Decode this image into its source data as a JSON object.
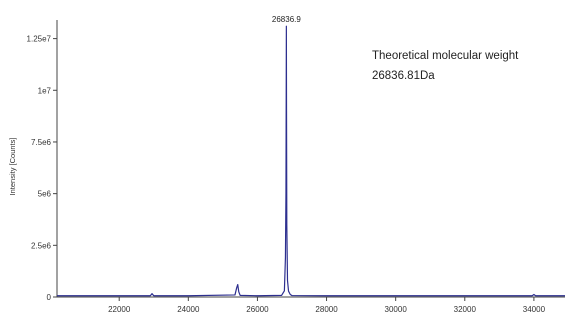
{
  "chart_data": {
    "type": "line",
    "title": "",
    "xlabel": "",
    "ylabel": "Intensity [Counts]",
    "xlim": [
      20200,
      34900
    ],
    "ylim": [
      0,
      13400000
    ],
    "x_ticks": [
      22000,
      24000,
      26000,
      28000,
      30000,
      32000,
      34000
    ],
    "y_ticks": [
      0,
      2500000,
      5000000,
      7500000,
      10000000,
      12500000
    ],
    "x_tick_labels": [
      "22000",
      "24000",
      "26000",
      "28000",
      "30000",
      "32000",
      "34000"
    ],
    "y_tick_labels": [
      "0",
      "2.5e6",
      "5e6",
      "7.5e6",
      "1e7",
      "1.25e7"
    ],
    "grid": false,
    "line_color": "#2d2f8f",
    "series": [
      {
        "x": [
          20200,
          22000,
          22900,
          22950,
          23000,
          24000,
          25350,
          25400,
          25430,
          25460,
          25500,
          26000,
          26700,
          26780,
          26810,
          26825,
          26832,
          26836.9,
          26842,
          26850,
          26870,
          26900,
          26950,
          27000,
          28000,
          30000,
          32000,
          33950,
          34000,
          34050,
          34900
        ],
        "y": [
          60000,
          60000,
          60000,
          160000,
          60000,
          60000,
          100000,
          450000,
          600000,
          250000,
          80000,
          60000,
          80000,
          300000,
          1900000,
          5000000,
          9500000,
          13100000,
          9000000,
          3500000,
          800000,
          280000,
          120000,
          70000,
          60000,
          60000,
          60000,
          60000,
          120000,
          60000,
          60000
        ]
      }
    ],
    "annotations": [
      {
        "x": 26836.9,
        "y": 13100000,
        "text": "26836.9"
      }
    ]
  },
  "annotation_box": {
    "line1": "Theoretical molecular weight",
    "line2": "26836.81Da"
  }
}
